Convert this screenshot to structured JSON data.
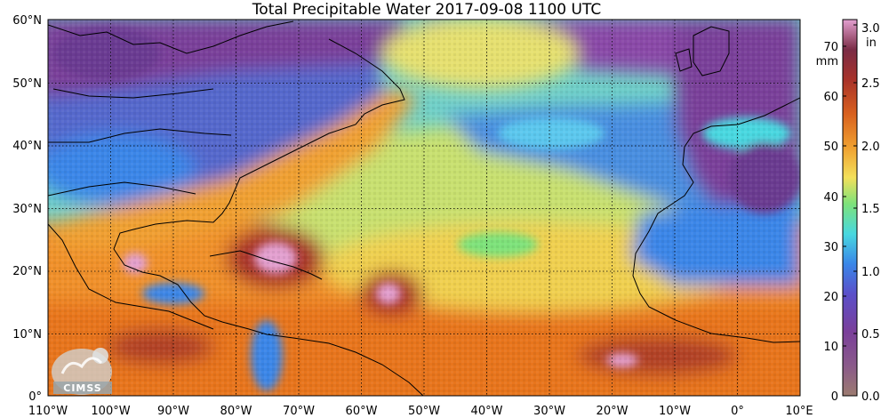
{
  "title": "Total Precipitable Water  2017-09-08 1100 UTC",
  "logo": {
    "name": "CIMSS"
  },
  "map": {
    "lat_labels": [
      "60°N",
      "50°N",
      "40°N",
      "30°N",
      "20°N",
      "10°N",
      "0°"
    ],
    "lon_labels": [
      "110°W",
      "100°W",
      "90°W",
      "80°W",
      "70°W",
      "60°W",
      "50°W",
      "40°W",
      "30°W",
      "20°W",
      "10°W",
      "0°",
      "10°E"
    ]
  },
  "colorbar": {
    "mm_unit": "mm",
    "in_unit": "in",
    "mm_ticks": [
      "0",
      "10",
      "20",
      "30",
      "40",
      "50",
      "60",
      "70"
    ],
    "in_ticks": [
      "0.0",
      "0.5",
      "1.0",
      "1.5",
      "2.0",
      "2.5",
      "3.0"
    ],
    "colors": {
      "low": "#9c7b70",
      "purple": "#7a3f9a",
      "violet": "#5b4fc9",
      "blue": "#3a86e8",
      "cyan": "#48d8e0",
      "green": "#7de27a",
      "yellow": "#f3e05a",
      "orange": "#f08a20",
      "redbrown": "#a8322a",
      "darkred": "#7a2c46",
      "pink": "#e3a0d0"
    }
  }
}
